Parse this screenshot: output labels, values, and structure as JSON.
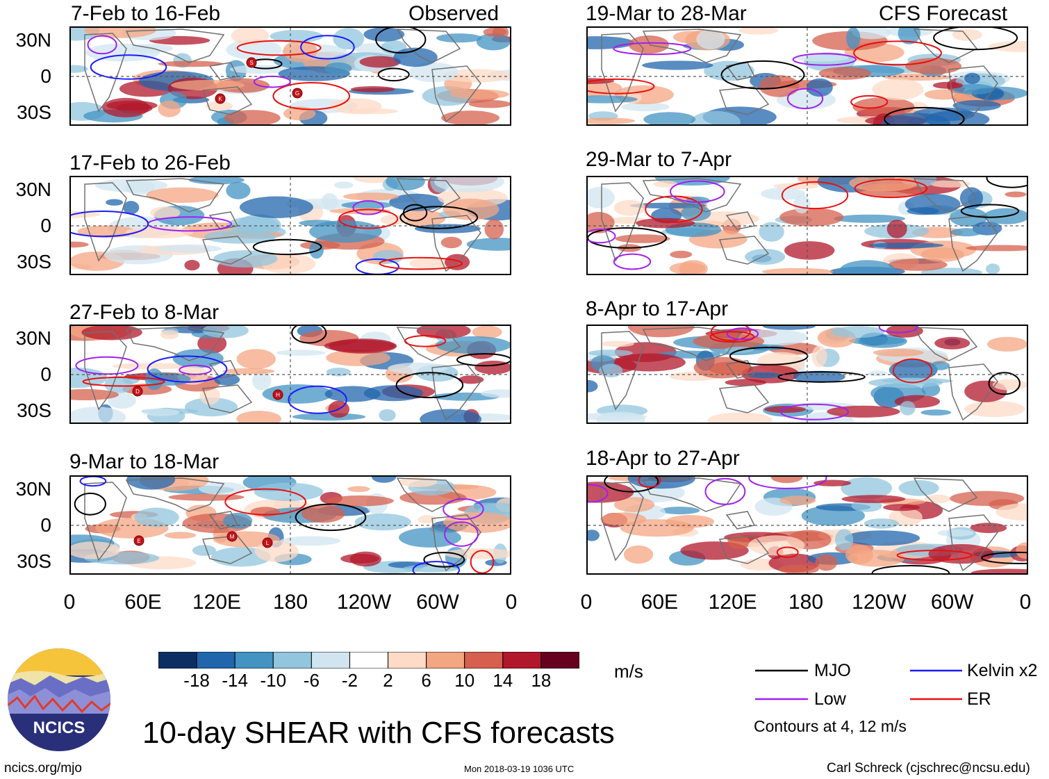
{
  "chart_data": {
    "type": "heatmap",
    "title": "10-day SHEAR with CFS forecasts",
    "units": "m/s",
    "x_tick_labels": [
      "0",
      "60E",
      "120E",
      "180",
      "120W",
      "60W",
      "0"
    ],
    "y_tick_labels": [
      "30N",
      "0",
      "30S"
    ],
    "colorbar": {
      "ticks": [
        "-18",
        "-14",
        "-10",
        "-6",
        "-2",
        "2",
        "6",
        "10",
        "14",
        "18"
      ],
      "colors": [
        "#0b2f63",
        "#2166ac",
        "#4393c3",
        "#92c5de",
        "#d1e5f0",
        "#ffffff",
        "#fddbc7",
        "#f4a582",
        "#d6604d",
        "#b2182b",
        "#67001f"
      ]
    },
    "legend": {
      "entries": [
        {
          "name": "MJO",
          "color": "#000000"
        },
        {
          "name": "Kelvin x2",
          "color": "#1a1aff"
        },
        {
          "name": "Low",
          "color": "#a020f0"
        },
        {
          "name": "ER",
          "color": "#e81010"
        }
      ],
      "note": "Contours at 4, 12 m/s"
    },
    "column_headers": [
      "Observed",
      "CFS Forecast"
    ],
    "panels": [
      {
        "period": "7-Feb to 16-Feb",
        "column": "Observed",
        "storms": [
          "S",
          "K",
          "G"
        ]
      },
      {
        "period": "17-Feb to 26-Feb",
        "column": "Observed",
        "storms": []
      },
      {
        "period": "27-Feb to 8-Mar",
        "column": "Observed",
        "storms": [
          "D",
          "H"
        ]
      },
      {
        "period": "9-Mar to 18-Mar",
        "column": "Observed",
        "storms": [
          "E",
          "M",
          "L"
        ]
      },
      {
        "period": "19-Mar to 28-Mar",
        "column": "CFS Forecast",
        "storms": []
      },
      {
        "period": "29-Mar to 7-Apr",
        "column": "CFS Forecast",
        "storms": []
      },
      {
        "period": "8-Apr to 17-Apr",
        "column": "CFS Forecast",
        "storms": []
      },
      {
        "period": "18-Apr to 27-Apr",
        "column": "CFS Forecast",
        "storms": []
      }
    ]
  },
  "branding": {
    "logo_text": "NCICS",
    "url": "ncics.org/mjo",
    "timestamp": "Mon 2018-03-19 1036 UTC",
    "credit": "Carl Schreck (cjschrec@ncsu.edu)"
  }
}
